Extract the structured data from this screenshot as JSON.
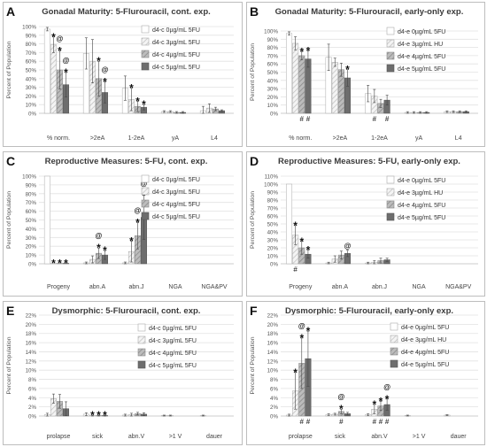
{
  "chart_data": [
    {
      "panel_letter": "A",
      "type": "bar",
      "title": "Gonadal Maturity: 5-Flurouracil, cont. exp.",
      "ylabel": "Percent of Population",
      "ylim": [
        0,
        100
      ],
      "yticks": [
        "0%",
        "10%",
        "20%",
        "30%",
        "40%",
        "50%",
        "60%",
        "70%",
        "80%",
        "90%",
        "100%"
      ],
      "categories": [
        "% norm.",
        ">2eA",
        "1-2eA",
        "yA",
        "L4"
      ],
      "legend_position": "top-right",
      "series": [
        {
          "name": "d4-c 0µg/mL 5FU",
          "style": "white",
          "values": [
            97,
            69,
            29,
            2,
            3
          ],
          "errors": [
            2,
            18,
            14,
            1,
            5
          ]
        },
        {
          "name": "d4-c 3µg/mL 5FU",
          "style": "hatch-light",
          "values": [
            79,
            60,
            16,
            2,
            6
          ],
          "errors": [
            9,
            25,
            13,
            1,
            5
          ]
        },
        {
          "name": "d4-c 4µg/mL 5FU",
          "style": "hatch-mid",
          "values": [
            50,
            40,
            8,
            1,
            5
          ],
          "errors": [
            22,
            20,
            6,
            1,
            2
          ]
        },
        {
          "name": "d4-c 5µg/mL 5FU",
          "style": "dark",
          "values": [
            33,
            24,
            7,
            1,
            3
          ],
          "errors": [
            14,
            12,
            3,
            1,
            1
          ]
        }
      ],
      "annotations": [
        {
          "cat": 0,
          "ser": 1,
          "marks": [
            "*"
          ]
        },
        {
          "cat": 0,
          "ser": 2,
          "marks": [
            "@",
            "*"
          ]
        },
        {
          "cat": 0,
          "ser": 3,
          "marks": [
            "@",
            "*"
          ]
        },
        {
          "cat": 1,
          "ser": 2,
          "marks": [
            "*"
          ]
        },
        {
          "cat": 1,
          "ser": 3,
          "marks": [
            "@",
            "*"
          ]
        },
        {
          "cat": 2,
          "ser": 1,
          "marks": [
            "*"
          ]
        },
        {
          "cat": 2,
          "ser": 2,
          "marks": [
            "*"
          ]
        },
        {
          "cat": 2,
          "ser": 3,
          "marks": [
            "*"
          ]
        }
      ],
      "bottom_marks": []
    },
    {
      "panel_letter": "B",
      "type": "bar",
      "title": "Gonadal Maturity: 5-Flurouracil, early-only exp.",
      "ylabel": "Percent of Population",
      "ylim": [
        0,
        100
      ],
      "yticks": [
        "0%",
        "10%",
        "20%",
        "30%",
        "40%",
        "50%",
        "60%",
        "70%",
        "80%",
        "90%",
        "100%"
      ],
      "categories": [
        "% norm.",
        ">2eA",
        "1-2eA",
        "yA",
        "L4"
      ],
      "legend_position": "top-right",
      "series": [
        {
          "name": "d4-e 0µg/mL 5FU",
          "style": "white",
          "values": [
            97,
            68,
            24,
            1,
            2
          ],
          "errors": [
            2,
            16,
            10,
            1,
            1
          ]
        },
        {
          "name": "d4-e 3µg/mL HU",
          "style": "hatch-light",
          "values": [
            85,
            62,
            21,
            1,
            2
          ],
          "errors": [
            8,
            5,
            8,
            1,
            1
          ]
        },
        {
          "name": "d4-e 4µg/mL 5FU",
          "style": "hatch-mid",
          "values": [
            70,
            53,
            12,
            1,
            2
          ],
          "errors": [
            5,
            8,
            5,
            1,
            1
          ]
        },
        {
          "name": "d4-e 5µg/mL 5FU",
          "style": "dark",
          "values": [
            66,
            43,
            16,
            1,
            2
          ],
          "errors": [
            10,
            10,
            6,
            1,
            1
          ]
        }
      ],
      "annotations": [
        {
          "cat": 0,
          "ser": 2,
          "marks": [
            "*"
          ]
        },
        {
          "cat": 0,
          "ser": 3,
          "marks": [
            "*"
          ]
        },
        {
          "cat": 1,
          "ser": 3,
          "marks": [
            "*"
          ]
        }
      ],
      "bottom_marks": [
        {
          "cat": 0,
          "ser": 2,
          "mark": "#"
        },
        {
          "cat": 0,
          "ser": 3,
          "mark": "#"
        },
        {
          "cat": 2,
          "ser": 1,
          "mark": "#"
        },
        {
          "cat": 2,
          "ser": 3,
          "mark": "#"
        }
      ]
    },
    {
      "panel_letter": "C",
      "type": "bar",
      "title": "Reproductive Measures: 5-FU, cont. exp.",
      "ylabel": "Percent of Population",
      "ylim": [
        0,
        100
      ],
      "yticks": [
        "0%",
        "10%",
        "20%",
        "30%",
        "40%",
        "50%",
        "60%",
        "70%",
        "80%",
        "90%",
        "100%"
      ],
      "categories": [
        "Progeny",
        "abn.A",
        "abn.J",
        "NGA",
        "NGA&PV"
      ],
      "legend_position": "top-right",
      "series": [
        {
          "name": "d4-c 0µg/mL 5FU",
          "style": "white",
          "values": [
            100,
            1,
            1,
            0,
            0
          ],
          "errors": [
            0,
            1,
            1,
            0,
            0
          ]
        },
        {
          "name": "d4-c 3µg/mL 5FU",
          "style": "hatch-light",
          "values": [
            0.5,
            5,
            14,
            0,
            0
          ],
          "errors": [
            0,
            4,
            12,
            0,
            0
          ]
        },
        {
          "name": "d4-c 4µg/mL 5FU",
          "style": "hatch-mid",
          "values": [
            0.5,
            12,
            32,
            0,
            0
          ],
          "errors": [
            0,
            6,
            15,
            0,
            0
          ]
        },
        {
          "name": "d4-c 5µg/mL 5FU",
          "style": "dark",
          "values": [
            0.5,
            10,
            53,
            0,
            0
          ],
          "errors": [
            0,
            5,
            25,
            0,
            0
          ]
        }
      ],
      "annotations": [
        {
          "cat": 0,
          "ser": 1,
          "marks": [
            "*"
          ]
        },
        {
          "cat": 0,
          "ser": 2,
          "marks": [
            "*"
          ]
        },
        {
          "cat": 0,
          "ser": 3,
          "marks": [
            "*"
          ]
        },
        {
          "cat": 1,
          "ser": 2,
          "marks": [
            "@",
            "*"
          ]
        },
        {
          "cat": 1,
          "ser": 3,
          "marks": [
            "*"
          ]
        },
        {
          "cat": 2,
          "ser": 1,
          "marks": [
            "*"
          ]
        },
        {
          "cat": 2,
          "ser": 2,
          "marks": [
            "@",
            "*"
          ]
        },
        {
          "cat": 2,
          "ser": 3,
          "marks": [
            "@",
            "*"
          ]
        }
      ],
      "bottom_marks": []
    },
    {
      "panel_letter": "D",
      "type": "bar",
      "title": "Reproductive Measures: 5-FU, early-only exp.",
      "ylabel": "Percent of Population",
      "ylim": [
        0,
        110
      ],
      "yticks": [
        "0%",
        "10%",
        "20%",
        "30%",
        "40%",
        "50%",
        "60%",
        "70%",
        "80%",
        "90%",
        "100%",
        "110%"
      ],
      "categories": [
        "Progeny",
        "abn.A",
        "abn.J",
        "NGA",
        "NGA&PV"
      ],
      "legend_position": "top-right",
      "series": [
        {
          "name": "d4-e 0µg/mL 5FU",
          "style": "white",
          "values": [
            100,
            1,
            1,
            0,
            0
          ],
          "errors": [
            0,
            1,
            1,
            0,
            0
          ]
        },
        {
          "name": "d4-e 3µg/mL HU",
          "style": "hatch-light",
          "values": [
            36,
            6,
            2,
            0,
            0
          ],
          "errors": [
            12,
            4,
            2,
            0,
            0
          ]
        },
        {
          "name": "d4-e 4µg/mL 5FU",
          "style": "hatch-mid",
          "values": [
            20,
            11,
            4,
            0,
            0
          ],
          "errors": [
            8,
            5,
            3,
            0,
            0
          ]
        },
        {
          "name": "d4-e 5µg/mL 5FU",
          "style": "dark",
          "values": [
            12,
            13,
            5,
            0,
            0
          ],
          "errors": [
            5,
            4,
            2,
            0,
            0
          ]
        }
      ],
      "annotations": [
        {
          "cat": 0,
          "ser": 1,
          "marks": [
            "*"
          ]
        },
        {
          "cat": 0,
          "ser": 2,
          "marks": [
            "*"
          ]
        },
        {
          "cat": 0,
          "ser": 3,
          "marks": [
            "*"
          ]
        },
        {
          "cat": 1,
          "ser": 3,
          "marks": [
            "@"
          ]
        }
      ],
      "bottom_marks": [
        {
          "cat": 0,
          "ser": 1,
          "mark": "#"
        }
      ]
    },
    {
      "panel_letter": "E",
      "type": "bar",
      "title": "Dysmorphic: 5-Flurouracil, cont. exp.",
      "ylabel": "Percent of Population",
      "ylim": [
        0,
        22
      ],
      "yticks": [
        "0%",
        "2%",
        "4%",
        "6%",
        "8%",
        "10%",
        "12%",
        "14%",
        "16%",
        "18%",
        "20%",
        "22%"
      ],
      "categories": [
        "prolapse",
        "sick",
        "abn.V",
        ">1 V",
        "dauer"
      ],
      "legend_position": "top-right",
      "series": [
        {
          "name": "d4-c 0µg/mL 5FU",
          "style": "white",
          "values": [
            0.3,
            0.4,
            0.2,
            0.1,
            0.1
          ],
          "errors": [
            0.3,
            0.3,
            0.2,
            0.1,
            0.1
          ]
        },
        {
          "name": "d4-c 3µg/mL 5FU",
          "style": "hatch-light",
          "values": [
            3.8,
            0.1,
            0.3,
            0.1,
            0
          ],
          "errors": [
            1,
            0.1,
            0.3,
            0.1,
            0
          ]
        },
        {
          "name": "d4-c 4µg/mL 5FU",
          "style": "hatch-mid",
          "values": [
            3.2,
            0.1,
            0.5,
            0,
            0
          ],
          "errors": [
            1.5,
            0.1,
            0.3,
            0,
            0
          ]
        },
        {
          "name": "d4-c 5µg/mL 5FU",
          "style": "dark",
          "values": [
            1.6,
            0.1,
            0.4,
            0,
            0
          ],
          "errors": [
            1.5,
            0.1,
            0.3,
            0,
            0
          ]
        }
      ],
      "annotations": [
        {
          "cat": 1,
          "ser": 1,
          "marks": [
            "*"
          ]
        },
        {
          "cat": 1,
          "ser": 2,
          "marks": [
            "*"
          ]
        },
        {
          "cat": 1,
          "ser": 3,
          "marks": [
            "*"
          ]
        }
      ],
      "bottom_marks": []
    },
    {
      "panel_letter": "F",
      "type": "bar",
      "title": "Dysmorphic: 5-Flurouracil, early-only exp.",
      "ylabel": "Percent of Population",
      "ylim": [
        0,
        22
      ],
      "yticks": [
        "0%",
        "2%",
        "4%",
        "6%",
        "8%",
        "10%",
        "12%",
        "14%",
        "16%",
        "18%",
        "20%",
        "22%"
      ],
      "categories": [
        "prolapse",
        "sick",
        "abn.V",
        ">1 V",
        "dauer"
      ],
      "legend_position": "top-right",
      "series": [
        {
          "name": "d4-e 0µg/mL 5FU",
          "style": "white",
          "values": [
            0.2,
            0.3,
            0.3,
            0.1,
            0.2
          ],
          "errors": [
            0.2,
            0.2,
            0.2,
            0.1,
            0.1
          ]
        },
        {
          "name": "d4-e 3µg/mL HU",
          "style": "hatch-light",
          "values": [
            5.5,
            0.4,
            1.5,
            0,
            0
          ],
          "errors": [
            4,
            0.2,
            1,
            0,
            0
          ]
        },
        {
          "name": "d4-e 4µg/mL 5FU",
          "style": "hatch-mid",
          "values": [
            11.5,
            1,
            2.2,
            0,
            0
          ],
          "errors": [
            5.5,
            0.5,
            1,
            0,
            0
          ]
        },
        {
          "name": "d4-e 5µg/mL 5FU",
          "style": "dark",
          "values": [
            12.5,
            0.5,
            2.5,
            0,
            0
          ],
          "errors": [
            6,
            0.3,
            1.2,
            0,
            0
          ]
        }
      ],
      "annotations": [
        {
          "cat": 0,
          "ser": 1,
          "marks": [
            "*"
          ]
        },
        {
          "cat": 0,
          "ser": 2,
          "marks": [
            "@",
            "*"
          ]
        },
        {
          "cat": 0,
          "ser": 3,
          "marks": [
            "*"
          ]
        },
        {
          "cat": 1,
          "ser": 2,
          "marks": [
            "@",
            "*"
          ]
        },
        {
          "cat": 2,
          "ser": 1,
          "marks": [
            "*"
          ]
        },
        {
          "cat": 2,
          "ser": 2,
          "marks": [
            "*"
          ]
        },
        {
          "cat": 2,
          "ser": 3,
          "marks": [
            "@",
            "*"
          ]
        }
      ],
      "bottom_marks": [
        {
          "cat": 0,
          "ser": 2,
          "mark": "#"
        },
        {
          "cat": 0,
          "ser": 3,
          "mark": "#"
        },
        {
          "cat": 1,
          "ser": 2,
          "mark": "#"
        },
        {
          "cat": 2,
          "ser": 1,
          "mark": "#"
        },
        {
          "cat": 2,
          "ser": 2,
          "mark": "#"
        },
        {
          "cat": 2,
          "ser": 3,
          "mark": "#"
        }
      ]
    }
  ]
}
